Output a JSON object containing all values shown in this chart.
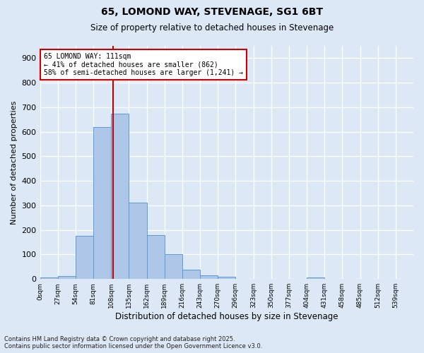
{
  "title1": "65, LOMOND WAY, STEVENAGE, SG1 6BT",
  "title2": "Size of property relative to detached houses in Stevenage",
  "xlabel": "Distribution of detached houses by size in Stevenage",
  "ylabel": "Number of detached properties",
  "bins": [
    "0sqm",
    "27sqm",
    "54sqm",
    "81sqm",
    "108sqm",
    "135sqm",
    "162sqm",
    "189sqm",
    "216sqm",
    "243sqm",
    "270sqm",
    "296sqm",
    "323sqm",
    "350sqm",
    "377sqm",
    "404sqm",
    "431sqm",
    "458sqm",
    "485sqm",
    "512sqm",
    "539sqm"
  ],
  "bar_heights": [
    7,
    12,
    175,
    620,
    675,
    310,
    178,
    100,
    38,
    15,
    10,
    0,
    0,
    0,
    0,
    5,
    0,
    0,
    0,
    0,
    0
  ],
  "bar_color": "#aec6e8",
  "bar_edge_color": "#5b9bd5",
  "annotation_text": "65 LOMOND WAY: 111sqm\n← 41% of detached houses are smaller (862)\n58% of semi-detached houses are larger (1,241) →",
  "annotation_box_color": "#ffffff",
  "annotation_box_edge": "#cc0000",
  "vline_color": "#cc0000",
  "vline_x": 4.11,
  "yticks": [
    0,
    100,
    200,
    300,
    400,
    500,
    600,
    700,
    800,
    900
  ],
  "ylim": [
    0,
    950
  ],
  "background_color": "#dce8f5",
  "grid_color": "#ffffff",
  "footer1": "Contains HM Land Registry data © Crown copyright and database right 2025.",
  "footer2": "Contains public sector information licensed under the Open Government Licence v3.0."
}
